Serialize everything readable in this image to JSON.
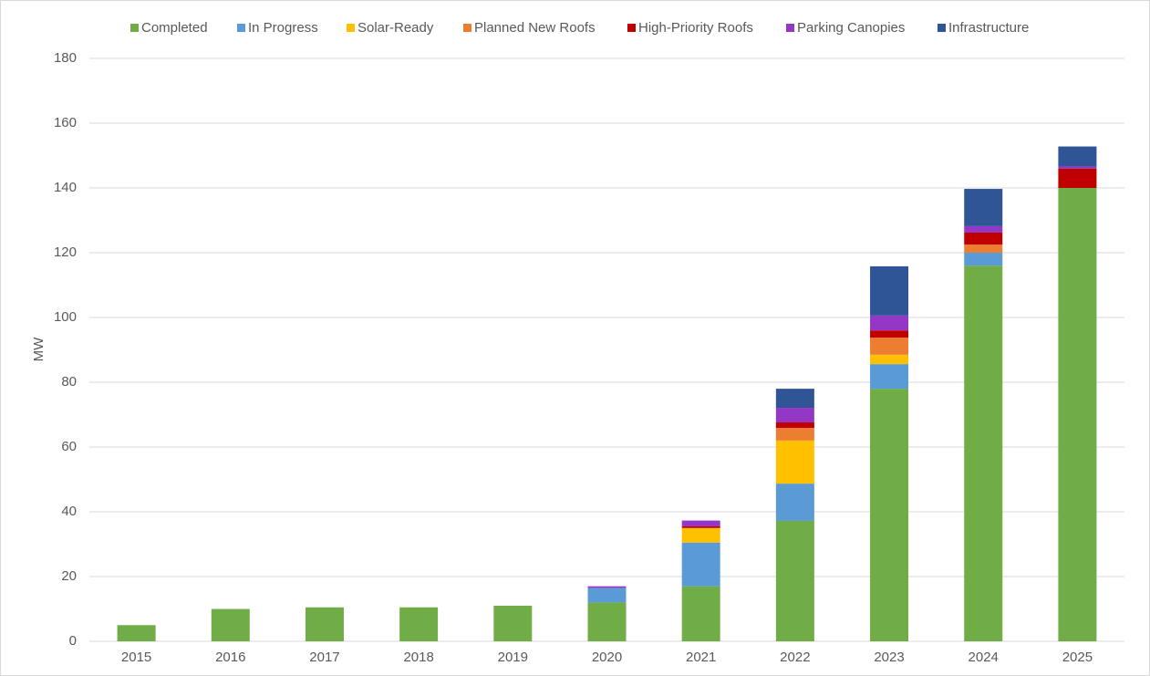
{
  "chart_data": {
    "type": "stacked_bar",
    "y_label": "MW",
    "categories": [
      "2015",
      "2016",
      "2017",
      "2018",
      "2019",
      "2020",
      "2021",
      "2022",
      "2023",
      "2024",
      "2025"
    ],
    "series": [
      {
        "name": "Completed",
        "color": "#70ad47",
        "values": [
          5,
          10,
          10.5,
          10.5,
          11,
          12,
          17,
          37.2,
          78,
          116,
          140
        ]
      },
      {
        "name": "In Progress",
        "color": "#5b9bd5",
        "values": [
          0,
          0,
          0,
          0,
          0,
          4.5,
          13.5,
          11.5,
          7.6,
          4,
          0
        ]
      },
      {
        "name": "Solar-Ready",
        "color": "#ffc000",
        "values": [
          0,
          0,
          0,
          0,
          0,
          0,
          4.5,
          13.3,
          2.9,
          0,
          0
        ]
      },
      {
        "name": "Planned New Roofs",
        "color": "#ed7d31",
        "values": [
          0,
          0,
          0,
          0,
          0,
          0,
          0,
          3.9,
          5.3,
          2.5,
          0
        ]
      },
      {
        "name": "High-Priority Roofs",
        "color": "#c00000",
        "values": [
          0,
          0,
          0,
          0,
          0,
          0,
          0.5,
          1.7,
          2.2,
          3.7,
          6
        ]
      },
      {
        "name": "Parking Canopies",
        "color": "#9437c6",
        "values": [
          0,
          0,
          0,
          0,
          0,
          0.5,
          1.8,
          4.5,
          4.6,
          2,
          0.6
        ]
      },
      {
        "name": "Infrastructure",
        "color": "#2f5597",
        "values": [
          0,
          0,
          0,
          0,
          0,
          0,
          0,
          5.9,
          15.2,
          11.5,
          6.2
        ]
      }
    ],
    "ylim": [
      0,
      180
    ],
    "yticks": [
      0,
      20,
      40,
      60,
      80,
      100,
      120,
      140,
      160,
      180
    ],
    "grid": true,
    "legend": "top"
  }
}
